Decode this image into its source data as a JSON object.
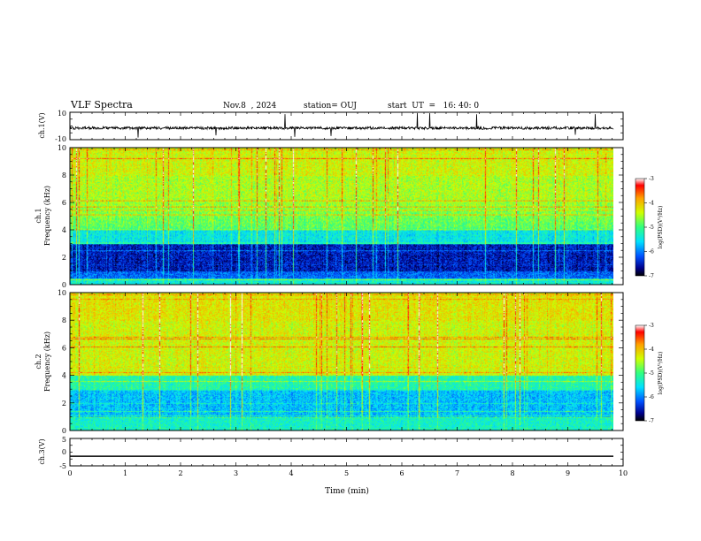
{
  "header": {
    "title": "VLF Spectra",
    "date": "Nov.8  , 2024",
    "station": "station= OUJ",
    "start": "start  UT  =   16: 40: 0"
  },
  "chart_data": [
    {
      "type": "line",
      "name": "ch1-waveform",
      "ylabel": "ch.1(V)",
      "ylim": [
        -10,
        10
      ],
      "yticks": [
        "10",
        "-10"
      ],
      "xlim": [
        0,
        10
      ]
    },
    {
      "type": "heatmap",
      "name": "ch1-spectrogram",
      "ylabel": "ch.1\nFrequency (kHz)",
      "ylabel_line1": "ch.1",
      "ylabel_line2": "Frequency  (kHz)",
      "ylim": [
        0,
        10
      ],
      "yticks": [
        "0",
        "2",
        "4",
        "6",
        "8",
        "10"
      ],
      "xlim": [
        0,
        9.8
      ],
      "colorbar": {
        "label": "log(PSD)(V²/Hz)",
        "range": [
          -7,
          -3
        ],
        "ticks": [
          "-3",
          "-4",
          "-5",
          "-6",
          "-7"
        ]
      }
    },
    {
      "type": "heatmap",
      "name": "ch2-spectrogram",
      "ylabel_line1": "ch.2",
      "ylabel_line2": "Frequency  (kHz)",
      "ylim": [
        0,
        10
      ],
      "yticks": [
        "0",
        "2",
        "4",
        "6",
        "8",
        "10"
      ],
      "xlim": [
        0,
        9.8
      ],
      "colorbar": {
        "label": "log(PSD)(V²/Hz)",
        "range": [
          -7,
          -3
        ],
        "ticks": [
          "-3",
          "-4",
          "-5",
          "-6",
          "-7"
        ]
      }
    },
    {
      "type": "line",
      "name": "ch3-waveform",
      "ylabel": "ch.3(V)",
      "ylim": [
        -5,
        5
      ],
      "yticks": [
        "5",
        "0",
        "-5"
      ],
      "constant_value": -1.5,
      "xlim": [
        0,
        10
      ],
      "xlabel": "Time  (min)",
      "xticks": [
        "0",
        "1",
        "2",
        "3",
        "4",
        "5",
        "6",
        "7",
        "8",
        "9",
        "10"
      ]
    }
  ]
}
